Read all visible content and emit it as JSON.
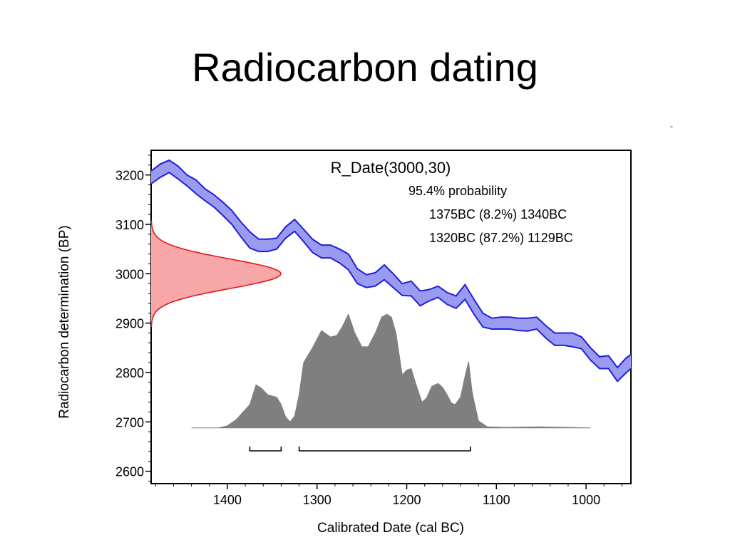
{
  "slide": {
    "title": "Radiocarbon dating",
    "corner_mark": "-"
  },
  "chart_data": {
    "type": "area",
    "title": "R_Date(3000,30)",
    "annotation": {
      "heading": "95.4% probability",
      "ranges": [
        "1375BC (8.2%) 1340BC",
        "1320BC (87.2%) 1129BC"
      ],
      "range_bars": [
        [
          1375,
          1340
        ],
        [
          1320,
          1129
        ]
      ]
    },
    "xlabel": "Calibrated Date (cal BC)",
    "ylabel": "Radiocarbon determination (BP)",
    "xlim": [
      1485,
      950
    ],
    "ylim": [
      2575,
      3250
    ],
    "x_ticks": [
      1400,
      1300,
      1200,
      1100,
      1000
    ],
    "y_ticks": [
      2600,
      2700,
      2800,
      2900,
      3000,
      3100,
      3200
    ],
    "colors": {
      "calibration_curve": "#1f1fdd",
      "calibration_fill": "#9a9af0",
      "measurement_line": "#e51616",
      "measurement_fill": "#f7a7a7",
      "posterior_fill": "#7f7f7f"
    },
    "calibration_curve": {
      "name": "",
      "x": [
        1485,
        1475,
        1465,
        1455,
        1445,
        1435,
        1425,
        1415,
        1405,
        1395,
        1385,
        1375,
        1365,
        1355,
        1345,
        1335,
        1325,
        1315,
        1305,
        1295,
        1285,
        1275,
        1265,
        1255,
        1245,
        1235,
        1225,
        1215,
        1205,
        1195,
        1185,
        1175,
        1165,
        1155,
        1145,
        1135,
        1125,
        1115,
        1105,
        1095,
        1085,
        1075,
        1065,
        1055,
        1045,
        1035,
        1025,
        1015,
        1005,
        995,
        985,
        975,
        965,
        955,
        950
      ],
      "upper": [
        3208,
        3222,
        3230,
        3218,
        3200,
        3190,
        3172,
        3160,
        3145,
        3128,
        3105,
        3085,
        3070,
        3070,
        3072,
        3095,
        3110,
        3090,
        3070,
        3058,
        3058,
        3050,
        3040,
        3010,
        2998,
        3002,
        3018,
        3000,
        2980,
        2985,
        2965,
        2968,
        2975,
        2962,
        2955,
        2978,
        2948,
        2920,
        2910,
        2912,
        2912,
        2910,
        2910,
        2912,
        2895,
        2880,
        2880,
        2880,
        2872,
        2850,
        2832,
        2834,
        2810,
        2830,
        2836
      ],
      "lower": [
        3182,
        3195,
        3205,
        3192,
        3178,
        3162,
        3148,
        3135,
        3118,
        3100,
        3075,
        3052,
        3045,
        3045,
        3050,
        3072,
        3086,
        3065,
        3043,
        3032,
        3032,
        3022,
        3008,
        2980,
        2972,
        2975,
        2988,
        2972,
        2956,
        2955,
        2935,
        2945,
        2952,
        2938,
        2930,
        2948,
        2918,
        2892,
        2888,
        2888,
        2888,
        2885,
        2884,
        2888,
        2870,
        2855,
        2855,
        2852,
        2848,
        2825,
        2808,
        2808,
        2782,
        2800,
        2808
      ]
    },
    "measurement": {
      "name": "R_Date(3000,30)",
      "mean_bp": 3000,
      "sigma": 30
    },
    "posterior": {
      "name": "",
      "baseline_bp": 2688,
      "x": [
        1440,
        1410,
        1400,
        1390,
        1385,
        1375,
        1368,
        1362,
        1355,
        1345,
        1340,
        1335,
        1330,
        1325,
        1320,
        1315,
        1305,
        1295,
        1285,
        1278,
        1272,
        1265,
        1258,
        1250,
        1243,
        1235,
        1228,
        1222,
        1217,
        1212,
        1205,
        1200,
        1195,
        1190,
        1183,
        1178,
        1172,
        1165,
        1160,
        1155,
        1150,
        1146,
        1140,
        1135,
        1131,
        1127,
        1120,
        1110,
        1090,
        1050,
        995
      ],
      "y": [
        2688,
        2688,
        2692,
        2705,
        2715,
        2735,
        2775,
        2768,
        2755,
        2750,
        2735,
        2710,
        2700,
        2712,
        2755,
        2820,
        2850,
        2885,
        2872,
        2875,
        2892,
        2918,
        2880,
        2852,
        2852,
        2880,
        2912,
        2918,
        2912,
        2880,
        2795,
        2805,
        2808,
        2778,
        2740,
        2748,
        2772,
        2778,
        2770,
        2755,
        2738,
        2735,
        2750,
        2792,
        2822,
        2760,
        2702,
        2690,
        2689,
        2690,
        2688
      ]
    }
  }
}
